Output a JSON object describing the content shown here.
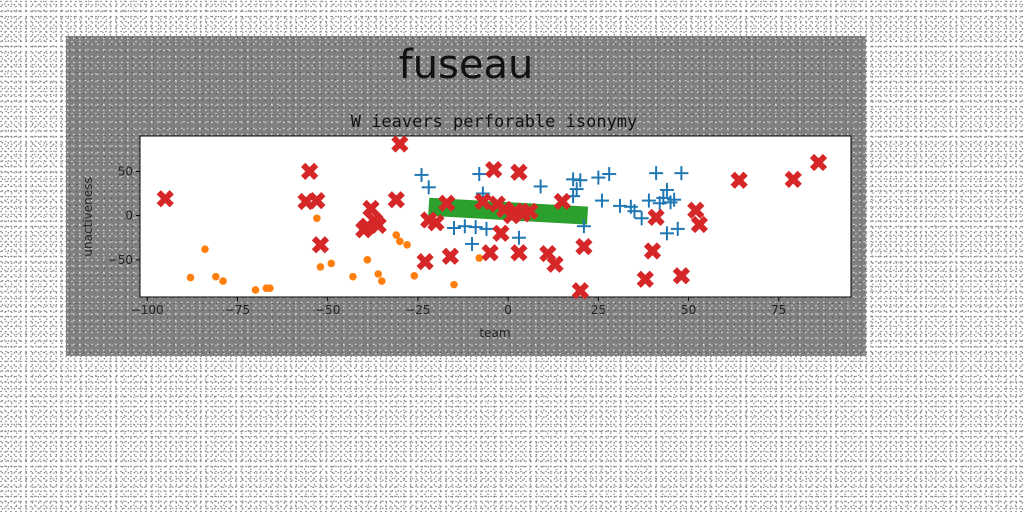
{
  "chart_data": {
    "type": "scatter",
    "suptitle": "fuseau",
    "title": "W ieavers perforable isonymy",
    "xlabel": "team",
    "ylabel": "unactiveness",
    "xlim": [
      -102,
      95
    ],
    "ylim": [
      -92,
      90
    ],
    "xticks": [
      -100,
      -75,
      -50,
      -25,
      0,
      25,
      50,
      75
    ],
    "yticks": [
      -50,
      0,
      50
    ],
    "grid": false,
    "legend": "none",
    "colors": {
      "plus": "#1f77b4",
      "dot": "#ff7f0e",
      "band": "#2ca02c",
      "cross": "#d62728",
      "background": "#808080",
      "axes": "#ffffff"
    },
    "band": {
      "x": [
        -22,
        22
      ],
      "y_start": 10,
      "y_end": 0,
      "thickness": 18
    },
    "series": [
      {
        "marker": "plus",
        "points": [
          [
            -24,
            46
          ],
          [
            -22,
            32
          ],
          [
            -8,
            47
          ],
          [
            -7,
            25
          ],
          [
            -15,
            -14
          ],
          [
            -12,
            -12
          ],
          [
            -9,
            -13
          ],
          [
            -6,
            -15
          ],
          [
            -10,
            -32
          ],
          [
            3,
            -25
          ],
          [
            9,
            33
          ],
          [
            18,
            41
          ],
          [
            19,
            30
          ],
          [
            20,
            40
          ],
          [
            18,
            22
          ],
          [
            21,
            -12
          ],
          [
            25,
            43
          ],
          [
            28,
            47
          ],
          [
            26,
            17
          ],
          [
            31,
            11
          ],
          [
            34,
            10
          ],
          [
            35,
            5
          ],
          [
            37,
            -3
          ],
          [
            39,
            17
          ],
          [
            41,
            48
          ],
          [
            43,
            20
          ],
          [
            44,
            29
          ],
          [
            45,
            15
          ],
          [
            46,
            18
          ],
          [
            47,
            -15
          ],
          [
            44,
            -20
          ],
          [
            48,
            48
          ],
          [
            42,
            14
          ]
        ]
      },
      {
        "marker": "dot",
        "points": [
          [
            -84,
            -38
          ],
          [
            -88,
            -70
          ],
          [
            -81,
            -69
          ],
          [
            -79,
            -74
          ],
          [
            -70,
            -84
          ],
          [
            -67,
            -82
          ],
          [
            -66,
            -82
          ],
          [
            -53,
            -3
          ],
          [
            -52,
            -58
          ],
          [
            -49,
            -54
          ],
          [
            -43,
            -69
          ],
          [
            -39,
            -50
          ],
          [
            -36,
            -66
          ],
          [
            -35,
            -74
          ],
          [
            -31,
            -22
          ],
          [
            -30,
            -29
          ],
          [
            -28,
            -33
          ],
          [
            -26,
            -68
          ],
          [
            -15,
            -78
          ],
          [
            -8,
            -48
          ]
        ]
      },
      {
        "marker": "cross",
        "points": [
          [
            -95,
            19
          ],
          [
            -55,
            50
          ],
          [
            -56,
            16
          ],
          [
            -53,
            17
          ],
          [
            -52,
            -33
          ],
          [
            -40,
            -16
          ],
          [
            -38,
            8
          ],
          [
            -37,
            -6
          ],
          [
            -36,
            -11
          ],
          [
            -39,
            -12
          ],
          [
            -30,
            81
          ],
          [
            -31,
            18
          ],
          [
            -23,
            -52
          ],
          [
            -22,
            -5
          ],
          [
            -20,
            -8
          ],
          [
            -17,
            14
          ],
          [
            -16,
            -46
          ],
          [
            -7,
            16
          ],
          [
            -5,
            -42
          ],
          [
            -4,
            52
          ],
          [
            -3,
            13
          ],
          [
            -2,
            -20
          ],
          [
            -1,
            7
          ],
          [
            1,
            0
          ],
          [
            2,
            5
          ],
          [
            3,
            49
          ],
          [
            4,
            2
          ],
          [
            6,
            5
          ],
          [
            3,
            -42
          ],
          [
            11,
            -43
          ],
          [
            13,
            -55
          ],
          [
            15,
            16
          ],
          [
            20,
            -85
          ],
          [
            21,
            -35
          ],
          [
            38,
            -72
          ],
          [
            40,
            -40
          ],
          [
            41,
            -2
          ],
          [
            48,
            -68
          ],
          [
            52,
            6
          ],
          [
            53,
            -10
          ],
          [
            64,
            40
          ],
          [
            79,
            41
          ],
          [
            86,
            60
          ]
        ]
      }
    ]
  }
}
